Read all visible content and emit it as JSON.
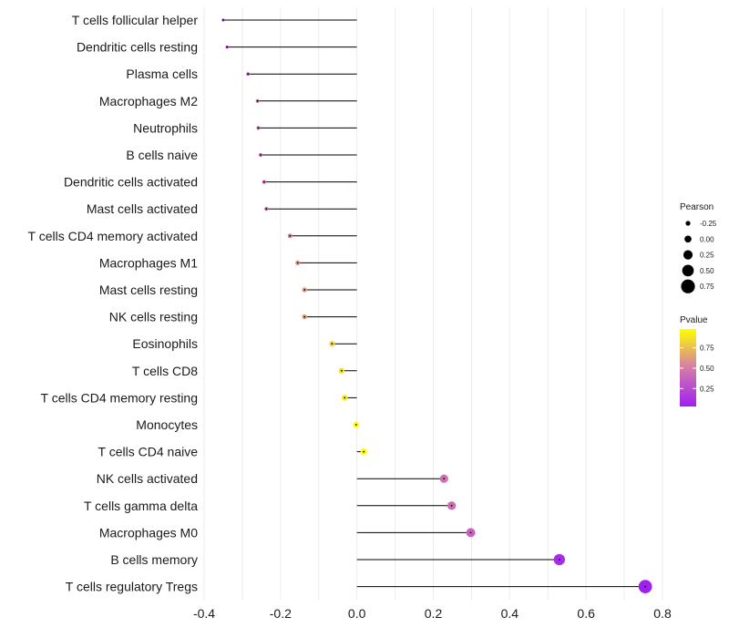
{
  "chart_data": {
    "type": "lollipop",
    "title": "",
    "xlabel": "",
    "ylabel": "",
    "xlim": [
      -0.4,
      0.8
    ],
    "xticks": [
      -0.4,
      -0.2,
      0.0,
      0.2,
      0.4,
      0.6,
      0.8
    ],
    "xtick_labels": [
      "-0.4",
      "-0.2",
      "0.0",
      "0.2",
      "0.4",
      "0.6",
      "0.8"
    ],
    "grid": true,
    "categories": [
      "T cells follicular helper",
      "Dendritic cells resting",
      "Plasma cells",
      "Macrophages M2",
      "Neutrophils",
      "B cells naive",
      "Dendritic cells activated",
      "Mast cells activated",
      "T cells CD4 memory activated",
      "Macrophages M1",
      "Mast cells resting",
      "NK cells resting",
      "Eosinophils",
      "T cells CD8",
      "T cells CD4 memory resting",
      "Monocytes",
      "T cells CD4 naive",
      "NK cells activated",
      "T cells gamma delta",
      "Macrophages M0",
      "B cells memory",
      "T cells regulatory  Tregs"
    ],
    "pearson": [
      -0.35,
      -0.34,
      -0.285,
      -0.26,
      -0.258,
      -0.252,
      -0.243,
      -0.237,
      -0.175,
      -0.155,
      -0.137,
      -0.137,
      -0.065,
      -0.04,
      -0.032,
      -0.002,
      0.018,
      0.228,
      0.248,
      0.298,
      0.53,
      0.755
    ],
    "pvalue": [
      0.15,
      0.2,
      0.38,
      0.42,
      0.4,
      0.42,
      0.43,
      0.45,
      0.55,
      0.6,
      0.62,
      0.62,
      0.82,
      0.88,
      0.91,
      0.98,
      0.95,
      0.45,
      0.43,
      0.38,
      0.1,
      0.03
    ],
    "legend_size": {
      "title": "Pearson",
      "values": [
        -0.25,
        0.0,
        0.25,
        0.5,
        0.75
      ],
      "labels": [
        "-0.25",
        "0.00",
        "0.25",
        "0.50",
        "0.75"
      ],
      "position": "right"
    },
    "legend_color": {
      "title": "Pvalue",
      "values": [
        0.75,
        0.5,
        0.25
      ],
      "labels": [
        "0.75",
        "0.50",
        "0.25"
      ],
      "range": [
        0.03,
        0.98
      ],
      "low_color": "#a020f0",
      "mid_color": "#d37ca8",
      "high_color": "#ffff00",
      "position": "right"
    }
  }
}
